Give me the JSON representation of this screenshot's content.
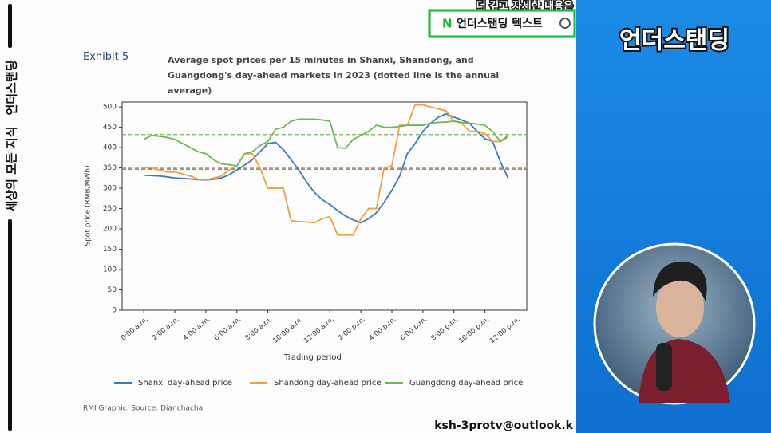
{
  "chart_data": {
    "type": "line",
    "exhibit": "Exhibit 5",
    "title": "Average spot prices per 15 minutes in Shanxi, Shandong, and Guangdong's day-ahead markets in 2023 (dotted line is the annual average)",
    "x_label": "Trading period",
    "y_label": "Spot price (RMB/MWh)",
    "source": "RMI Graphic. Source: Dianchacha",
    "x": [
      0,
      0.5,
      1,
      1.5,
      2,
      2.5,
      3,
      3.5,
      4,
      4.5,
      5,
      5.5,
      6,
      6.5,
      7,
      7.5,
      8,
      8.5,
      9,
      9.5,
      10,
      10.5,
      11,
      11.5,
      12,
      12.5,
      13,
      13.5,
      14,
      14.5,
      15,
      15.5,
      16,
      16.5,
      17,
      17.5,
      18,
      18.5,
      19,
      19.5,
      20,
      20.5,
      21,
      21.5,
      22,
      22.5,
      23,
      23.5
    ],
    "xlim": [
      -1.4,
      24.7
    ],
    "xticks": [
      {
        "value": 0,
        "label": "0:00 a.m."
      },
      {
        "value": 2,
        "label": "2:00 a.m."
      },
      {
        "value": 4,
        "label": "4:00 a.m."
      },
      {
        "value": 6,
        "label": "6:00 a.m."
      },
      {
        "value": 8,
        "label": "8:00 a.m."
      },
      {
        "value": 10,
        "label": "10:00 a.m."
      },
      {
        "value": 12,
        "label": "12:00 a.m."
      },
      {
        "value": 14,
        "label": "2:00 p.m."
      },
      {
        "value": 16,
        "label": "4:00 p.m."
      },
      {
        "value": 18,
        "label": "6:00 p.m."
      },
      {
        "value": 20,
        "label": "8:00 p.m."
      },
      {
        "value": 22,
        "label": "10:00 p.m."
      },
      {
        "value": 24,
        "label": "12:00 p.m."
      }
    ],
    "ylim": [
      0,
      512
    ],
    "yticks": [
      0,
      50,
      100,
      150,
      200,
      250,
      300,
      350,
      400,
      450,
      500
    ],
    "series": [
      {
        "name": "Shanxi day-ahead price",
        "color": "#3b7bb8",
        "average": 347,
        "average_color": "#666666",
        "values": [
          332,
          331,
          330,
          328,
          325,
          324,
          323,
          321,
          320,
          322,
          325,
          333,
          345,
          357,
          370,
          390,
          410,
          413,
          395,
          370,
          345,
          315,
          290,
          272,
          260,
          245,
          232,
          222,
          215,
          225,
          240,
          265,
          295,
          330,
          385,
          410,
          440,
          460,
          475,
          483,
          475,
          468,
          460,
          440,
          422,
          415,
          365,
          325
        ]
      },
      {
        "name": "Shandong day-ahead price",
        "color": "#f0a13f",
        "average": 350,
        "average_color": "#f0a13f",
        "values": [
          350,
          350,
          345,
          340,
          340,
          335,
          330,
          322,
          320,
          325,
          330,
          345,
          355,
          385,
          385,
          350,
          300,
          300,
          300,
          220,
          218,
          217,
          215,
          225,
          230,
          185,
          185,
          185,
          225,
          250,
          250,
          350,
          355,
          455,
          455,
          505,
          505,
          500,
          495,
          490,
          465,
          460,
          440,
          440,
          435,
          415,
          415,
          425
        ]
      },
      {
        "name": "Guangdong day-ahead price",
        "color": "#72b65b",
        "average": 432,
        "average_color": "#72b65b",
        "values": [
          420,
          430,
          428,
          425,
          420,
          410,
          400,
          390,
          385,
          370,
          360,
          358,
          355,
          385,
          390,
          405,
          415,
          445,
          450,
          465,
          470,
          470,
          470,
          468,
          465,
          400,
          398,
          420,
          430,
          440,
          455,
          450,
          450,
          452,
          455,
          455,
          455,
          460,
          462,
          463,
          465,
          462,
          460,
          458,
          455,
          440,
          415,
          430
        ]
      }
    ]
  },
  "overlay": {
    "banner_top": "더 깊고 자세한 내용은",
    "badge_letter": "N",
    "badge_text": "언더스탠딩 텍스트",
    "panel_title": "언더스탠딩",
    "side_text_1": "세상의 모든 지식",
    "side_text_2": "언더스탠딩",
    "email": "ksh-3protv@outlook.k"
  }
}
